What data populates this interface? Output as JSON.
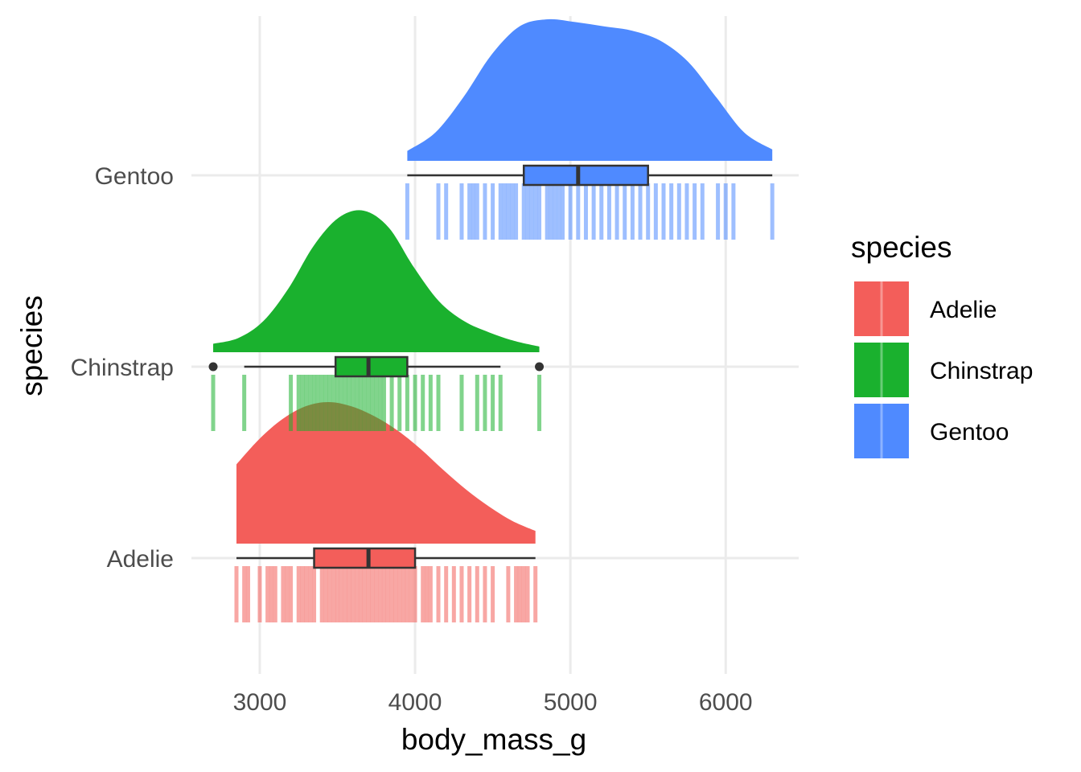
{
  "chart_data": {
    "type": "raincloud",
    "xlabel": "body_mass_g",
    "ylabel": "species",
    "xlim": [
      2560,
      6470
    ],
    "x_ticks": [
      3000,
      4000,
      5000,
      6000
    ],
    "x_tick_labels": [
      "3000",
      "4000",
      "5000",
      "6000"
    ],
    "categories": [
      "Adelie",
      "Chinstrap",
      "Gentoo"
    ],
    "grid": true,
    "legend": {
      "title": "species",
      "placement": "right",
      "entries": [
        "Adelie",
        "Chinstrap",
        "Gentoo"
      ]
    },
    "series": [
      {
        "name": "Adelie",
        "color": "#F35E5A",
        "range": [
          2850,
          4775
        ],
        "box": {
          "min": 2850,
          "q1": 3350,
          "median": 3700,
          "q3": 4000,
          "max": 4775
        },
        "outliers": [],
        "density": [
          0.56,
          0.74,
          0.88,
          0.97,
          1.0,
          0.97,
          0.9,
          0.8,
          0.67,
          0.52,
          0.38,
          0.26,
          0.16,
          0.09
        ],
        "points": [
          2850,
          2900,
          2925,
          3000,
          3050,
          3075,
          3100,
          3150,
          3175,
          3200,
          3250,
          3275,
          3300,
          3325,
          3350,
          3400,
          3425,
          3450,
          3475,
          3500,
          3525,
          3550,
          3575,
          3600,
          3625,
          3650,
          3675,
          3700,
          3725,
          3750,
          3775,
          3800,
          3825,
          3850,
          3875,
          3900,
          3925,
          3950,
          3975,
          4000,
          4050,
          4075,
          4100,
          4150,
          4200,
          4250,
          4300,
          4350,
          4400,
          4450,
          4500,
          4600,
          4650,
          4675,
          4700,
          4725,
          4775
        ]
      },
      {
        "name": "Chinstrap",
        "color": "#1AB12E",
        "range": [
          2700,
          4800
        ],
        "box": {
          "min": 2900,
          "q1": 3488,
          "median": 3700,
          "q3": 3950,
          "max": 4550
        },
        "outliers": [
          2700,
          4800
        ],
        "density": [
          0.06,
          0.1,
          0.22,
          0.45,
          0.75,
          0.95,
          1.0,
          0.88,
          0.6,
          0.36,
          0.22,
          0.14,
          0.08,
          0.04
        ],
        "points": [
          2700,
          2900,
          3200,
          3250,
          3275,
          3300,
          3325,
          3350,
          3375,
          3400,
          3425,
          3450,
          3475,
          3500,
          3525,
          3550,
          3575,
          3600,
          3625,
          3650,
          3675,
          3700,
          3725,
          3750,
          3775,
          3800,
          3850,
          3900,
          3950,
          4000,
          4050,
          4100,
          4150,
          4300,
          4400,
          4450,
          4500,
          4550,
          4800
        ]
      },
      {
        "name": "Gentoo",
        "color": "#4F8AFF",
        "range": [
          3950,
          6300
        ],
        "box": {
          "min": 3950,
          "q1": 4700,
          "median": 5050,
          "q3": 5500,
          "max": 6300
        },
        "outliers": [],
        "density": [
          0.07,
          0.2,
          0.45,
          0.75,
          0.95,
          1.0,
          0.98,
          0.95,
          0.92,
          0.85,
          0.7,
          0.45,
          0.2,
          0.08
        ],
        "points": [
          3950,
          4150,
          4200,
          4300,
          4350,
          4375,
          4400,
          4450,
          4500,
          4550,
          4575,
          4600,
          4625,
          4650,
          4700,
          4725,
          4750,
          4775,
          4800,
          4850,
          4875,
          4900,
          4925,
          4950,
          5000,
          5050,
          5100,
          5150,
          5200,
          5250,
          5300,
          5350,
          5400,
          5450,
          5500,
          5550,
          5600,
          5650,
          5700,
          5750,
          5800,
          5850,
          5950,
          6000,
          6050,
          6300
        ]
      }
    ]
  }
}
